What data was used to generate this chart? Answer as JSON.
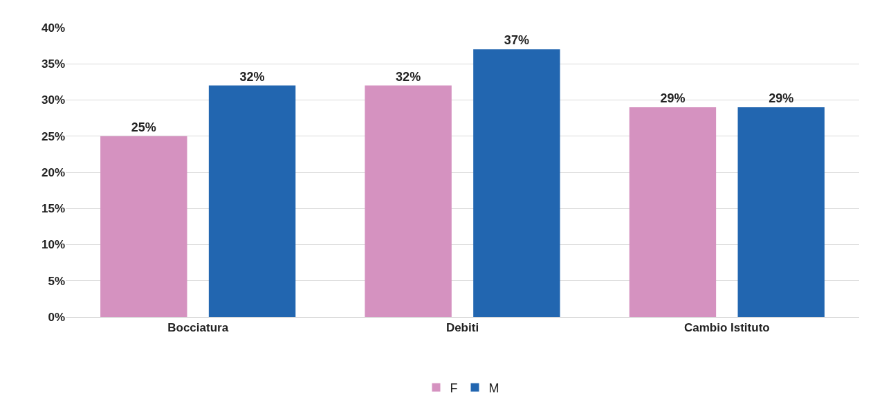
{
  "chart_data": {
    "type": "bar",
    "categories": [
      "Bocciatura",
      "Debiti",
      "Cambio Istituto"
    ],
    "series": [
      {
        "name": "F",
        "color": "#d592c0",
        "values": [
          25,
          32,
          29
        ],
        "value_labels": [
          "25%",
          "32%",
          "29%"
        ]
      },
      {
        "name": "M",
        "color": "#2266b0",
        "values": [
          32,
          37,
          29
        ],
        "value_labels": [
          "32%",
          "37%",
          "29%"
        ]
      }
    ],
    "ylim": [
      0,
      40
    ],
    "yticks": [
      {
        "value": 0,
        "label": "0%"
      },
      {
        "value": 5,
        "label": "5%"
      },
      {
        "value": 10,
        "label": "10%"
      },
      {
        "value": 15,
        "label": "15%"
      },
      {
        "value": 20,
        "label": "20%"
      },
      {
        "value": 25,
        "label": "25%"
      },
      {
        "value": 30,
        "label": "30%"
      },
      {
        "value": 35,
        "label": "35%"
      },
      {
        "value": 40,
        "label": "40%"
      }
    ],
    "grid": "y",
    "legend": "bottom"
  }
}
